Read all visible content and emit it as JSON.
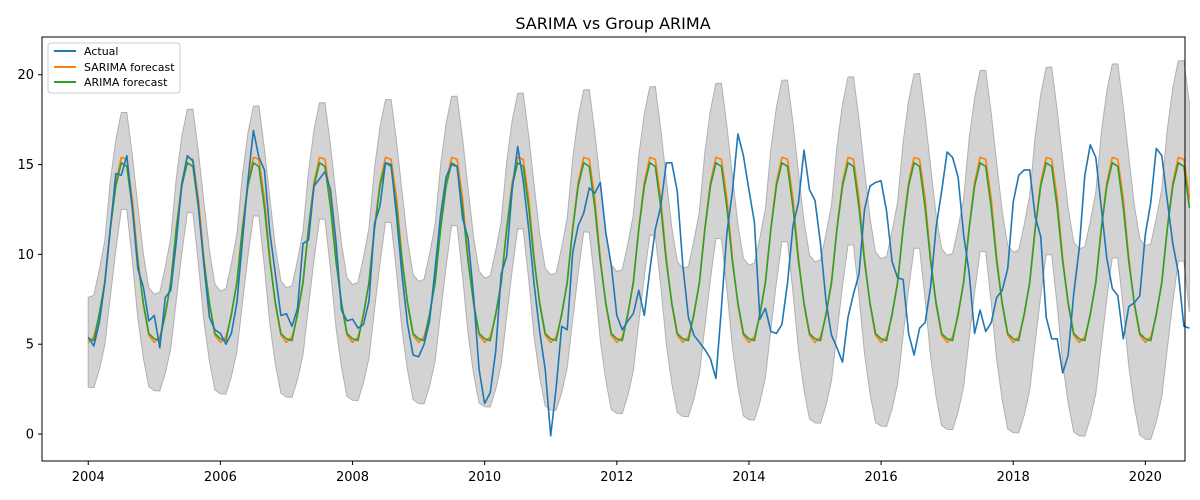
{
  "chart_data": {
    "type": "line",
    "title": "SARIMA vs Group ARIMA",
    "xlabel": "",
    "ylabel": "",
    "xlim": [
      2003.3,
      2020.6
    ],
    "ylim": [
      -1.5,
      22.1
    ],
    "x_ticks": [
      2004,
      2006,
      2008,
      2010,
      2012,
      2014,
      2016,
      2018,
      2020
    ],
    "y_ticks": [
      0,
      5,
      10,
      15,
      20
    ],
    "x_start": 2004.0,
    "x_step_per_point": 0.08333,
    "legend_position": "upper-left",
    "grid": false,
    "colors": {
      "actual": "#1f77b4",
      "sarima": "#ff7f0e",
      "arima": "#2ca02c",
      "band": "#d3d3d3",
      "band_edge": "#b0b0b0"
    },
    "series": [
      {
        "name": "Actual",
        "color": "#1f77b4",
        "values": [
          5.4,
          4.9,
          6.2,
          8.4,
          11.4,
          14.5,
          14.4,
          15.5,
          12.6,
          9.2,
          8.2,
          6.3,
          6.6,
          4.8,
          7.6,
          8.0,
          10.7,
          13.9,
          15.5,
          15.2,
          12.7,
          9.4,
          6.5,
          5.8,
          5.6,
          5.0,
          5.6,
          7.3,
          10.7,
          14.1,
          16.9,
          15.4,
          14.7,
          11.2,
          8.9,
          6.6,
          6.7,
          6.0,
          7.0,
          10.6,
          10.8,
          13.8,
          14.2,
          14.6,
          13.6,
          10.7,
          6.9,
          6.3,
          6.4,
          5.9,
          6.1,
          7.4,
          11.7,
          12.7,
          15.1,
          15.0,
          12.1,
          8.8,
          6.1,
          4.4,
          4.3,
          5.0,
          6.3,
          9.2,
          12.2,
          14.3,
          15.0,
          14.9,
          12.0,
          10.9,
          7.7,
          3.6,
          1.7,
          2.3,
          4.6,
          8.9,
          9.9,
          13.6,
          16.0,
          14.1,
          11.4,
          8.3,
          5.7,
          3.6,
          -0.1,
          2.6,
          6.0,
          5.8,
          10.1,
          11.6,
          12.3,
          13.7,
          13.4,
          14.0,
          11.2,
          9.4,
          6.6,
          5.8,
          6.3,
          6.7,
          8.0,
          6.6,
          9.1,
          11.4,
          12.7,
          15.1,
          15.1,
          13.5,
          9.4,
          6.5,
          5.5,
          5.1,
          4.7,
          4.2,
          3.1,
          7.0,
          11.2,
          13.5,
          16.7,
          15.5,
          13.6,
          11.8,
          6.4,
          7.0,
          5.7,
          5.6,
          6.1,
          8.4,
          11.6,
          12.9,
          15.8,
          13.6,
          13.0,
          10.6,
          7.4,
          5.5,
          4.8,
          4.0,
          6.5,
          7.8,
          8.9,
          12.5,
          13.8,
          14.0,
          14.1,
          12.4,
          9.6,
          8.7,
          8.6,
          5.6,
          4.4,
          5.9,
          6.2,
          8.2,
          11.5,
          13.5,
          15.7,
          15.4,
          14.3,
          11.1,
          9.0,
          5.6,
          6.9,
          5.7,
          6.2,
          7.6,
          8.0,
          9.2,
          12.9,
          14.4,
          14.7,
          14.7,
          12.1,
          11.0,
          6.5,
          5.3,
          5.3,
          3.4,
          4.4,
          7.8,
          10.3,
          14.4,
          16.1,
          15.4,
          12.6,
          9.8,
          8.1,
          7.7,
          5.3,
          7.1,
          7.3,
          7.7,
          11.1,
          12.9,
          15.9,
          15.5,
          13.0,
          10.6,
          9.0,
          6.0,
          5.9
        ]
      },
      {
        "name": "SARIMA forecast",
        "color": "#ff7f0e",
        "values": [
          5.1,
          5.4,
          6.6,
          8.5,
          11.5,
          14.0,
          15.4,
          15.3,
          13.1,
          9.8,
          7.2,
          5.5
        ]
      },
      {
        "name": "ARIMA forecast",
        "color": "#2ca02c",
        "values": [
          5.3,
          5.2,
          6.7,
          8.4,
          11.4,
          13.8,
          15.1,
          14.9,
          12.6,
          9.6,
          7.3,
          5.6
        ]
      }
    ],
    "forecast_band": {
      "lower": [
        2.6,
        2.6,
        3.6,
        5.0,
        7.7,
        10.3,
        12.6,
        12.6,
        9.8,
        6.6,
        4.4,
        2.8
      ],
      "upper": [
        7.6,
        7.7,
        9.1,
        10.7,
        14.0,
        16.3,
        17.8,
        17.8,
        15.4,
        12.6,
        9.9,
        8.0
      ],
      "spread_growth_per_year": 0.18
    }
  }
}
